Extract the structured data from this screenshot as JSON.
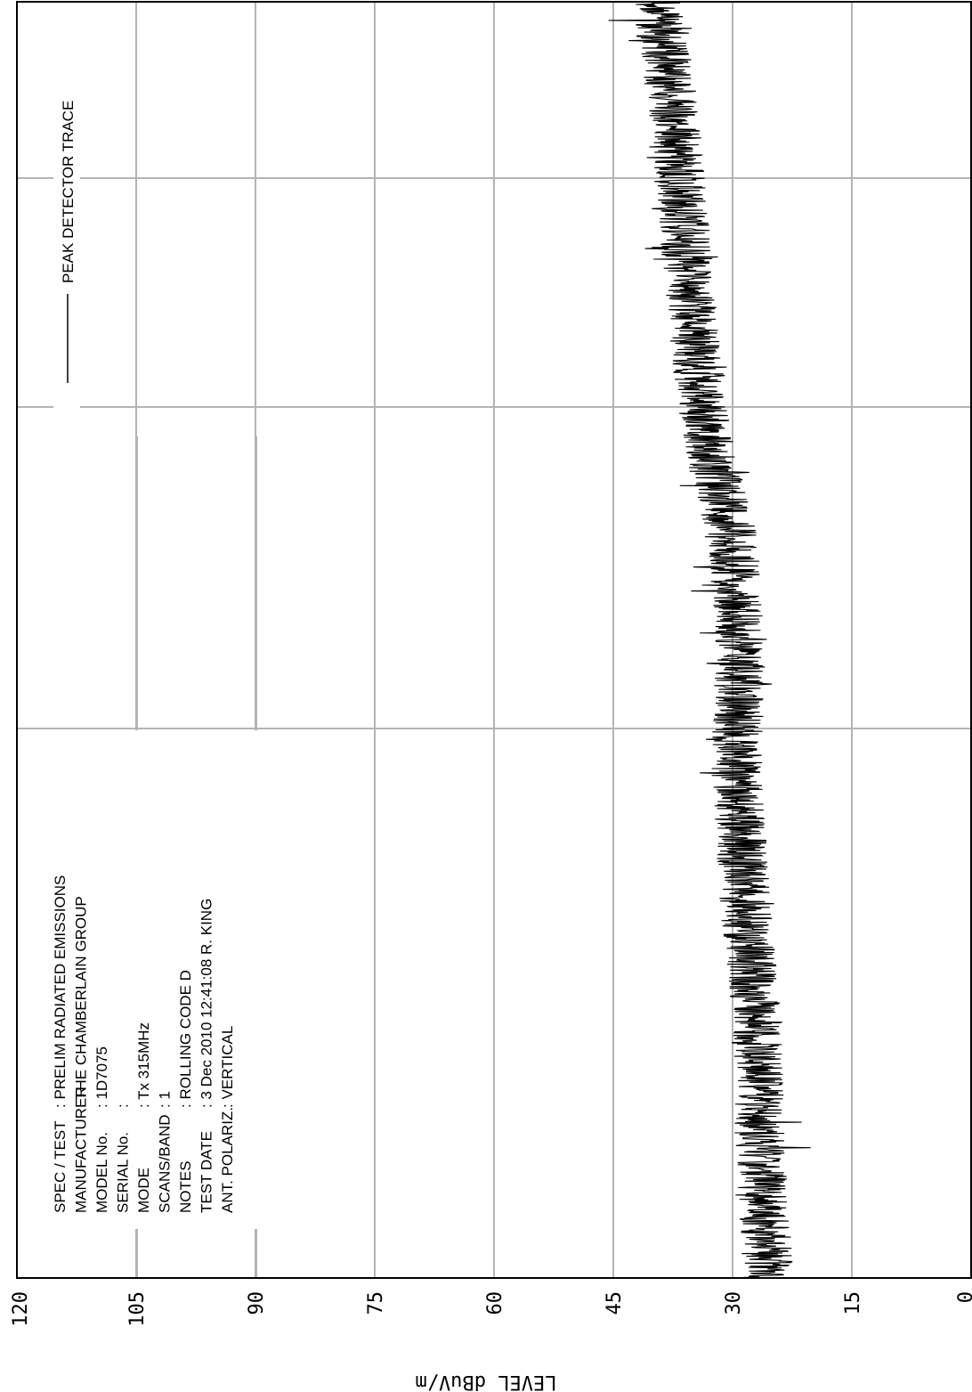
{
  "chart_data": {
    "type": "line",
    "title": "",
    "xlabel": "",
    "ylabel": "LEVEL dBuV/m",
    "ylim": [
      0,
      120
    ],
    "yticks": [
      "120",
      "105",
      "90",
      "75",
      "60",
      "45",
      "30",
      "15",
      "0"
    ],
    "xticks": [],
    "grid": true,
    "legend": {
      "placement": "top-right",
      "entries": [
        "PEAK DETECTOR TRACE"
      ]
    },
    "series": [
      {
        "name": "PEAK DETECTOR TRACE",
        "trend": [
          {
            "t": 0.0,
            "level": 25.5
          },
          {
            "t": 0.1,
            "level": 26.5
          },
          {
            "t": 0.2,
            "level": 27.0
          },
          {
            "t": 0.3,
            "level": 28.5
          },
          {
            "t": 0.4,
            "level": 29.5
          },
          {
            "t": 0.5,
            "level": 29.0
          },
          {
            "t": 0.58,
            "level": 30.0
          },
          {
            "t": 0.65,
            "level": 33.0
          },
          {
            "t": 0.75,
            "level": 35.0
          },
          {
            "t": 0.85,
            "level": 36.5
          },
          {
            "t": 0.92,
            "level": 37.5
          },
          {
            "t": 1.0,
            "level": 39.5
          }
        ]
      }
    ]
  },
  "info_block": {
    "rows": [
      {
        "label": "SPEC / TEST",
        "value": ": PRELIM RADIATED EMISSIONS"
      },
      {
        "label": "MANUFACTURER",
        "value": ": THE CHAMBERLAIN GROUP"
      },
      {
        "label": "MODEL No.",
        "value": ": 1D7075"
      },
      {
        "label": "SERIAL No.",
        "value": ":"
      },
      {
        "label": "MODE",
        "value": ": Tx 315MHz"
      },
      {
        "label": "SCANS/BAND",
        "value": ": 1"
      },
      {
        "label": "NOTES",
        "value": ": ROLLING CODE D"
      },
      {
        "label": "TEST DATE",
        "value": ":  3 Dec 2010 12:41:08  R. KING"
      },
      {
        "label": "ANT. POLARIZ.",
        "value": ": VERTICAL"
      }
    ]
  },
  "colors": {
    "grid": "#b4b4b4",
    "trace": "#000000",
    "frame": "#000000"
  }
}
